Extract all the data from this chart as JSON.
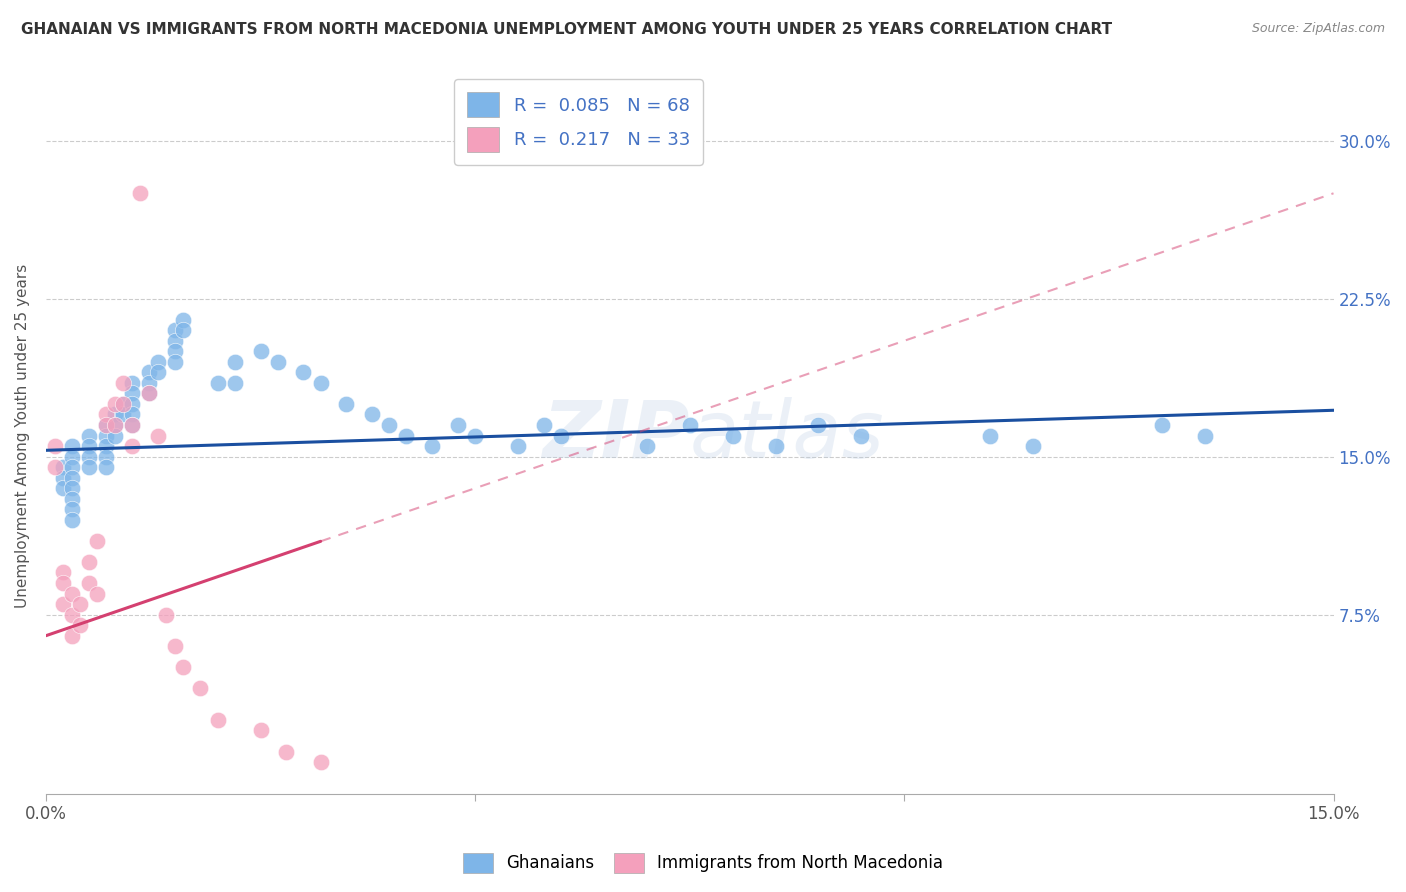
{
  "title": "GHANAIAN VS IMMIGRANTS FROM NORTH MACEDONIA UNEMPLOYMENT AMONG YOUTH UNDER 25 YEARS CORRELATION CHART",
  "source": "Source: ZipAtlas.com",
  "ylabel": "Unemployment Among Youth under 25 years",
  "yticks": [
    "7.5%",
    "15.0%",
    "22.5%",
    "30.0%"
  ],
  "ytick_vals": [
    0.075,
    0.15,
    0.225,
    0.3
  ],
  "xlim": [
    0.0,
    0.15
  ],
  "ylim": [
    -0.01,
    0.33
  ],
  "watermark": "ZIPatlas",
  "blue_color": "#7eb5e8",
  "pink_color": "#f4a0bc",
  "blue_line_color": "#1a4fa0",
  "pink_line_color": "#d44070",
  "blue_r": "0.085",
  "blue_n": "68",
  "pink_r": "0.217",
  "pink_n": "33",
  "ghanaian_x": [
    0.002,
    0.002,
    0.002,
    0.003,
    0.003,
    0.003,
    0.003,
    0.003,
    0.003,
    0.003,
    0.003,
    0.005,
    0.005,
    0.005,
    0.005,
    0.007,
    0.007,
    0.007,
    0.007,
    0.007,
    0.008,
    0.008,
    0.008,
    0.009,
    0.009,
    0.01,
    0.01,
    0.01,
    0.01,
    0.01,
    0.012,
    0.012,
    0.012,
    0.013,
    0.013,
    0.015,
    0.015,
    0.015,
    0.015,
    0.016,
    0.016,
    0.02,
    0.022,
    0.022,
    0.025,
    0.027,
    0.03,
    0.032,
    0.035,
    0.038,
    0.04,
    0.042,
    0.045,
    0.048,
    0.05,
    0.055,
    0.058,
    0.06,
    0.07,
    0.075,
    0.08,
    0.085,
    0.09,
    0.095,
    0.11,
    0.115,
    0.13,
    0.135
  ],
  "ghanaian_y": [
    0.145,
    0.14,
    0.135,
    0.155,
    0.15,
    0.145,
    0.14,
    0.135,
    0.13,
    0.125,
    0.12,
    0.16,
    0.155,
    0.15,
    0.145,
    0.165,
    0.16,
    0.155,
    0.15,
    0.145,
    0.17,
    0.165,
    0.16,
    0.175,
    0.17,
    0.185,
    0.18,
    0.175,
    0.17,
    0.165,
    0.19,
    0.185,
    0.18,
    0.195,
    0.19,
    0.21,
    0.205,
    0.2,
    0.195,
    0.215,
    0.21,
    0.185,
    0.195,
    0.185,
    0.2,
    0.195,
    0.19,
    0.185,
    0.175,
    0.17,
    0.165,
    0.16,
    0.155,
    0.165,
    0.16,
    0.155,
    0.165,
    0.16,
    0.155,
    0.165,
    0.16,
    0.155,
    0.165,
    0.16,
    0.16,
    0.155,
    0.165,
    0.16
  ],
  "immigrant_x": [
    0.001,
    0.001,
    0.002,
    0.002,
    0.002,
    0.003,
    0.003,
    0.003,
    0.004,
    0.004,
    0.005,
    0.005,
    0.006,
    0.006,
    0.007,
    0.007,
    0.008,
    0.008,
    0.009,
    0.009,
    0.01,
    0.01,
    0.011,
    0.012,
    0.013,
    0.014,
    0.015,
    0.016,
    0.018,
    0.02,
    0.025,
    0.028,
    0.032
  ],
  "immigrant_y": [
    0.155,
    0.145,
    0.095,
    0.09,
    0.08,
    0.085,
    0.075,
    0.065,
    0.08,
    0.07,
    0.1,
    0.09,
    0.11,
    0.085,
    0.17,
    0.165,
    0.175,
    0.165,
    0.185,
    0.175,
    0.165,
    0.155,
    0.275,
    0.18,
    0.16,
    0.075,
    0.06,
    0.05,
    0.04,
    0.025,
    0.02,
    0.01,
    0.005
  ]
}
